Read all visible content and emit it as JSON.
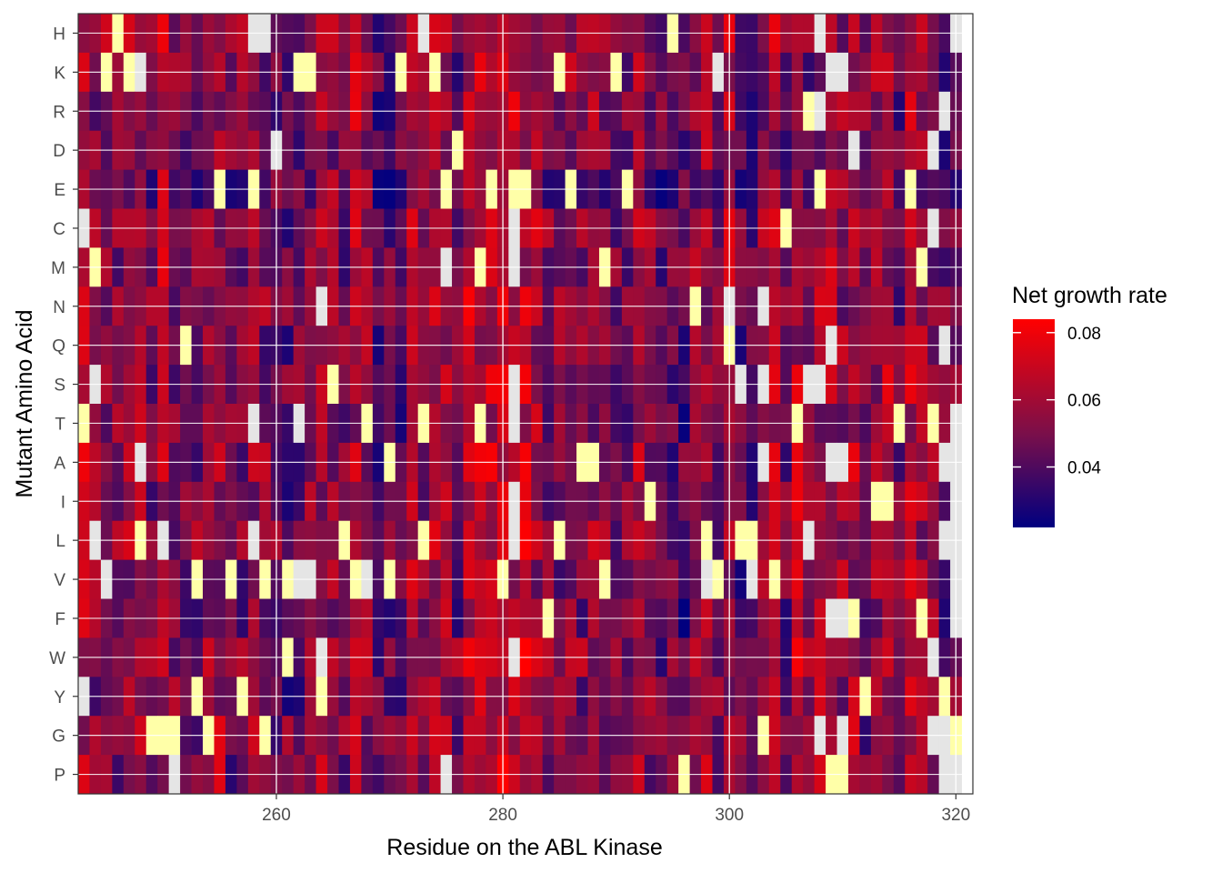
{
  "chart_data": {
    "type": "heatmap",
    "xlabel": "Residue on the ABL Kinase",
    "ylabel": "Mutant Amino Acid",
    "x_range": [
      242.5,
      321.5
    ],
    "x_ticks": [
      260,
      280,
      300,
      320
    ],
    "x_tick_labels": [
      "260",
      "280",
      "300",
      "320"
    ],
    "residues": [
      243,
      320
    ],
    "rows": [
      "H",
      "K",
      "R",
      "D",
      "E",
      "C",
      "M",
      "N",
      "Q",
      "S",
      "T",
      "A",
      "I",
      "L",
      "V",
      "F",
      "W",
      "Y",
      "G",
      "P"
    ],
    "cells_note": "Per-cell values are rendered from a representative pattern; yellow = highest (outside scale), light grey = missing",
    "legend": {
      "title": "Net growth rate",
      "min": 0.022,
      "max": 0.084,
      "breaks": [
        0.04,
        0.06,
        0.08
      ],
      "break_labels": [
        "0.04",
        "0.06",
        "0.08"
      ],
      "colors": {
        "low": "#000080",
        "mid": "#7a0f4a",
        "high": "#ff0000"
      }
    },
    "special_colors": {
      "missing": "#e5e5e5",
      "outlier_high": "#ffffa8"
    },
    "highlight_cells": [
      {
        "row": "H",
        "residue": 246,
        "kind": "outlier_high"
      },
      {
        "row": "H",
        "residue": 258,
        "kind": "missing"
      },
      {
        "row": "H",
        "residue": 259,
        "kind": "missing"
      },
      {
        "row": "H",
        "residue": 273,
        "kind": "missing"
      },
      {
        "row": "H",
        "residue": 295,
        "kind": "outlier_high"
      },
      {
        "row": "H",
        "residue": 308,
        "kind": "missing"
      },
      {
        "row": "H",
        "residue": 320,
        "kind": "missing"
      },
      {
        "row": "K",
        "residue": 245,
        "kind": "outlier_high"
      },
      {
        "row": "K",
        "residue": 247,
        "kind": "outlier_high"
      },
      {
        "row": "K",
        "residue": 248,
        "kind": "missing"
      },
      {
        "row": "K",
        "residue": 262,
        "kind": "outlier_high"
      },
      {
        "row": "K",
        "residue": 263,
        "kind": "outlier_high"
      },
      {
        "row": "K",
        "residue": 271,
        "kind": "outlier_high"
      },
      {
        "row": "K",
        "residue": 274,
        "kind": "outlier_high"
      },
      {
        "row": "K",
        "residue": 285,
        "kind": "outlier_high"
      },
      {
        "row": "K",
        "residue": 290,
        "kind": "outlier_high"
      },
      {
        "row": "K",
        "residue": 299,
        "kind": "missing"
      },
      {
        "row": "K",
        "residue": 309,
        "kind": "missing"
      },
      {
        "row": "K",
        "residue": 310,
        "kind": "missing"
      },
      {
        "row": "R",
        "residue": 307,
        "kind": "outlier_high"
      },
      {
        "row": "R",
        "residue": 308,
        "kind": "missing"
      },
      {
        "row": "R",
        "residue": 319,
        "kind": "missing"
      },
      {
        "row": "D",
        "residue": 260,
        "kind": "missing"
      },
      {
        "row": "D",
        "residue": 276,
        "kind": "outlier_high"
      },
      {
        "row": "D",
        "residue": 311,
        "kind": "missing"
      },
      {
        "row": "D",
        "residue": 318,
        "kind": "missing"
      },
      {
        "row": "E",
        "residue": 255,
        "kind": "outlier_high"
      },
      {
        "row": "E",
        "residue": 258,
        "kind": "outlier_high"
      },
      {
        "row": "E",
        "residue": 275,
        "kind": "outlier_high"
      },
      {
        "row": "E",
        "residue": 279,
        "kind": "outlier_high"
      },
      {
        "row": "E",
        "residue": 281,
        "kind": "outlier_high"
      },
      {
        "row": "E",
        "residue": 282,
        "kind": "outlier_high"
      },
      {
        "row": "E",
        "residue": 286,
        "kind": "outlier_high"
      },
      {
        "row": "E",
        "residue": 291,
        "kind": "outlier_high"
      },
      {
        "row": "E",
        "residue": 308,
        "kind": "outlier_high"
      },
      {
        "row": "E",
        "residue": 316,
        "kind": "outlier_high"
      },
      {
        "row": "C",
        "residue": 243,
        "kind": "missing"
      },
      {
        "row": "C",
        "residue": 281,
        "kind": "missing"
      },
      {
        "row": "C",
        "residue": 305,
        "kind": "outlier_high"
      },
      {
        "row": "C",
        "residue": 318,
        "kind": "missing"
      },
      {
        "row": "M",
        "residue": 244,
        "kind": "outlier_high"
      },
      {
        "row": "M",
        "residue": 275,
        "kind": "missing"
      },
      {
        "row": "M",
        "residue": 278,
        "kind": "outlier_high"
      },
      {
        "row": "M",
        "residue": 281,
        "kind": "missing"
      },
      {
        "row": "M",
        "residue": 289,
        "kind": "outlier_high"
      },
      {
        "row": "M",
        "residue": 317,
        "kind": "outlier_high"
      },
      {
        "row": "N",
        "residue": 264,
        "kind": "missing"
      },
      {
        "row": "N",
        "residue": 297,
        "kind": "outlier_high"
      },
      {
        "row": "N",
        "residue": 300,
        "kind": "missing"
      },
      {
        "row": "N",
        "residue": 303,
        "kind": "missing"
      },
      {
        "row": "Q",
        "residue": 252,
        "kind": "outlier_high"
      },
      {
        "row": "Q",
        "residue": 300,
        "kind": "outlier_high"
      },
      {
        "row": "Q",
        "residue": 309,
        "kind": "missing"
      },
      {
        "row": "Q",
        "residue": 319,
        "kind": "missing"
      },
      {
        "row": "S",
        "residue": 244,
        "kind": "missing"
      },
      {
        "row": "S",
        "residue": 265,
        "kind": "outlier_high"
      },
      {
        "row": "S",
        "residue": 281,
        "kind": "missing"
      },
      {
        "row": "S",
        "residue": 301,
        "kind": "missing"
      },
      {
        "row": "S",
        "residue": 303,
        "kind": "missing"
      },
      {
        "row": "S",
        "residue": 307,
        "kind": "missing"
      },
      {
        "row": "S",
        "residue": 308,
        "kind": "missing"
      },
      {
        "row": "T",
        "residue": 243,
        "kind": "outlier_high"
      },
      {
        "row": "T",
        "residue": 258,
        "kind": "missing"
      },
      {
        "row": "T",
        "residue": 262,
        "kind": "missing"
      },
      {
        "row": "T",
        "residue": 268,
        "kind": "outlier_high"
      },
      {
        "row": "T",
        "residue": 273,
        "kind": "outlier_high"
      },
      {
        "row": "T",
        "residue": 278,
        "kind": "outlier_high"
      },
      {
        "row": "T",
        "residue": 281,
        "kind": "missing"
      },
      {
        "row": "T",
        "residue": 306,
        "kind": "outlier_high"
      },
      {
        "row": "T",
        "residue": 315,
        "kind": "outlier_high"
      },
      {
        "row": "T",
        "residue": 318,
        "kind": "outlier_high"
      },
      {
        "row": "T",
        "residue": 320,
        "kind": "missing"
      },
      {
        "row": "A",
        "residue": 248,
        "kind": "missing"
      },
      {
        "row": "A",
        "residue": 270,
        "kind": "outlier_high"
      },
      {
        "row": "A",
        "residue": 287,
        "kind": "outlier_high"
      },
      {
        "row": "A",
        "residue": 288,
        "kind": "outlier_high"
      },
      {
        "row": "A",
        "residue": 303,
        "kind": "missing"
      },
      {
        "row": "A",
        "residue": 309,
        "kind": "missing"
      },
      {
        "row": "A",
        "residue": 310,
        "kind": "missing"
      },
      {
        "row": "A",
        "residue": 319,
        "kind": "missing"
      },
      {
        "row": "A",
        "residue": 320,
        "kind": "missing"
      },
      {
        "row": "I",
        "residue": 281,
        "kind": "missing"
      },
      {
        "row": "I",
        "residue": 293,
        "kind": "outlier_high"
      },
      {
        "row": "I",
        "residue": 313,
        "kind": "outlier_high"
      },
      {
        "row": "I",
        "residue": 314,
        "kind": "outlier_high"
      },
      {
        "row": "I",
        "residue": 320,
        "kind": "missing"
      },
      {
        "row": "L",
        "residue": 244,
        "kind": "missing"
      },
      {
        "row": "L",
        "residue": 248,
        "kind": "outlier_high"
      },
      {
        "row": "L",
        "residue": 250,
        "kind": "missing"
      },
      {
        "row": "L",
        "residue": 258,
        "kind": "missing"
      },
      {
        "row": "L",
        "residue": 266,
        "kind": "outlier_high"
      },
      {
        "row": "L",
        "residue": 273,
        "kind": "outlier_high"
      },
      {
        "row": "L",
        "residue": 281,
        "kind": "missing"
      },
      {
        "row": "L",
        "residue": 285,
        "kind": "outlier_high"
      },
      {
        "row": "L",
        "residue": 298,
        "kind": "outlier_high"
      },
      {
        "row": "L",
        "residue": 301,
        "kind": "outlier_high"
      },
      {
        "row": "L",
        "residue": 302,
        "kind": "outlier_high"
      },
      {
        "row": "L",
        "residue": 307,
        "kind": "missing"
      },
      {
        "row": "L",
        "residue": 319,
        "kind": "missing"
      },
      {
        "row": "L",
        "residue": 320,
        "kind": "missing"
      },
      {
        "row": "V",
        "residue": 245,
        "kind": "missing"
      },
      {
        "row": "V",
        "residue": 253,
        "kind": "outlier_high"
      },
      {
        "row": "V",
        "residue": 256,
        "kind": "outlier_high"
      },
      {
        "row": "V",
        "residue": 259,
        "kind": "outlier_high"
      },
      {
        "row": "V",
        "residue": 261,
        "kind": "outlier_high"
      },
      {
        "row": "V",
        "residue": 262,
        "kind": "missing"
      },
      {
        "row": "V",
        "residue": 263,
        "kind": "missing"
      },
      {
        "row": "V",
        "residue": 267,
        "kind": "outlier_high"
      },
      {
        "row": "V",
        "residue": 268,
        "kind": "missing"
      },
      {
        "row": "V",
        "residue": 270,
        "kind": "outlier_high"
      },
      {
        "row": "V",
        "residue": 280,
        "kind": "outlier_high"
      },
      {
        "row": "V",
        "residue": 289,
        "kind": "outlier_high"
      },
      {
        "row": "V",
        "residue": 298,
        "kind": "missing"
      },
      {
        "row": "V",
        "residue": 299,
        "kind": "outlier_high"
      },
      {
        "row": "V",
        "residue": 302,
        "kind": "missing"
      },
      {
        "row": "V",
        "residue": 304,
        "kind": "outlier_high"
      },
      {
        "row": "V",
        "residue": 320,
        "kind": "missing"
      },
      {
        "row": "F",
        "residue": 284,
        "kind": "outlier_high"
      },
      {
        "row": "F",
        "residue": 309,
        "kind": "missing"
      },
      {
        "row": "F",
        "residue": 310,
        "kind": "missing"
      },
      {
        "row": "F",
        "residue": 311,
        "kind": "outlier_high"
      },
      {
        "row": "F",
        "residue": 317,
        "kind": "outlier_high"
      },
      {
        "row": "F",
        "residue": 320,
        "kind": "missing"
      },
      {
        "row": "W",
        "residue": 261,
        "kind": "outlier_high"
      },
      {
        "row": "W",
        "residue": 264,
        "kind": "missing"
      },
      {
        "row": "W",
        "residue": 281,
        "kind": "missing"
      },
      {
        "row": "W",
        "residue": 318,
        "kind": "missing"
      },
      {
        "row": "Y",
        "residue": 243,
        "kind": "missing"
      },
      {
        "row": "Y",
        "residue": 253,
        "kind": "outlier_high"
      },
      {
        "row": "Y",
        "residue": 257,
        "kind": "outlier_high"
      },
      {
        "row": "Y",
        "residue": 264,
        "kind": "outlier_high"
      },
      {
        "row": "Y",
        "residue": 312,
        "kind": "outlier_high"
      },
      {
        "row": "Y",
        "residue": 319,
        "kind": "outlier_high"
      },
      {
        "row": "G",
        "residue": 249,
        "kind": "outlier_high"
      },
      {
        "row": "G",
        "residue": 250,
        "kind": "outlier_high"
      },
      {
        "row": "G",
        "residue": 251,
        "kind": "outlier_high"
      },
      {
        "row": "G",
        "residue": 254,
        "kind": "outlier_high"
      },
      {
        "row": "G",
        "residue": 259,
        "kind": "outlier_high"
      },
      {
        "row": "G",
        "residue": 303,
        "kind": "outlier_high"
      },
      {
        "row": "G",
        "residue": 308,
        "kind": "missing"
      },
      {
        "row": "G",
        "residue": 310,
        "kind": "missing"
      },
      {
        "row": "G",
        "residue": 318,
        "kind": "missing"
      },
      {
        "row": "G",
        "residue": 319,
        "kind": "missing"
      },
      {
        "row": "G",
        "residue": 320,
        "kind": "outlier_high"
      },
      {
        "row": "P",
        "residue": 251,
        "kind": "missing"
      },
      {
        "row": "P",
        "residue": 275,
        "kind": "missing"
      },
      {
        "row": "P",
        "residue": 296,
        "kind": "outlier_high"
      },
      {
        "row": "P",
        "residue": 309,
        "kind": "outlier_high"
      },
      {
        "row": "P",
        "residue": 310,
        "kind": "outlier_high"
      },
      {
        "row": "P",
        "residue": 319,
        "kind": "missing"
      },
      {
        "row": "P",
        "residue": 320,
        "kind": "missing"
      }
    ]
  }
}
